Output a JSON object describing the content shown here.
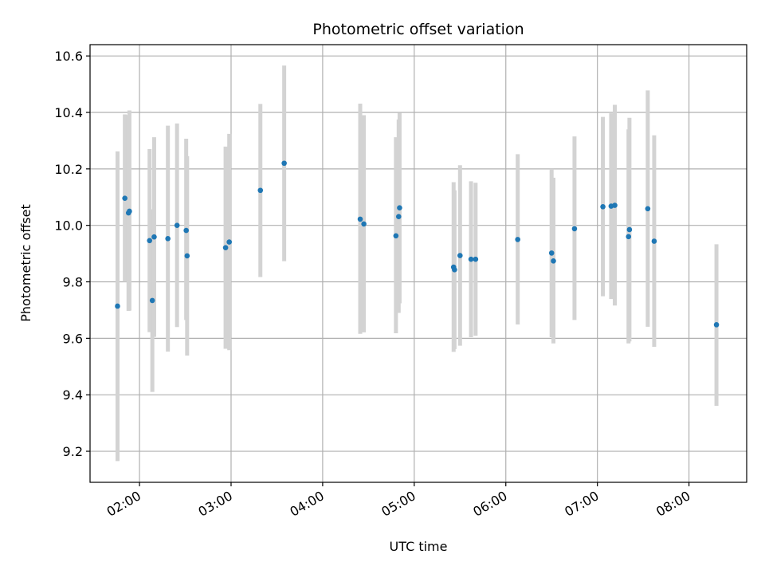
{
  "chart_data": {
    "type": "scatter",
    "title": "Photometric offset variation",
    "xlabel": "UTC time",
    "ylabel": "Photometric offset",
    "x_unit": "hours UTC",
    "xlim": [
      1.46,
      8.63
    ],
    "ylim": [
      9.09,
      10.64
    ],
    "grid": true,
    "xticks": [
      {
        "value": 2,
        "label": "02:00"
      },
      {
        "value": 3,
        "label": "03:00"
      },
      {
        "value": 4,
        "label": "04:00"
      },
      {
        "value": 5,
        "label": "05:00"
      },
      {
        "value": 6,
        "label": "06:00"
      },
      {
        "value": 7,
        "label": "07:00"
      },
      {
        "value": 8,
        "label": "08:00"
      }
    ],
    "yticks": [
      {
        "value": 9.2,
        "label": "9.2"
      },
      {
        "value": 9.4,
        "label": "9.4"
      },
      {
        "value": 9.6,
        "label": "9.6"
      },
      {
        "value": 9.8,
        "label": "9.8"
      },
      {
        "value": 10.0,
        "label": "10.0"
      },
      {
        "value": 10.2,
        "label": "10.2"
      },
      {
        "value": 10.4,
        "label": "10.4"
      },
      {
        "value": 10.6,
        "label": "10.6"
      }
    ],
    "colors": {
      "point": "#1f77b4",
      "errorbar": "#d3d3d3",
      "grid": "#b0b0b0"
    },
    "points": [
      {
        "x": 1.76,
        "y": 9.714,
        "low": 9.165,
        "high": 10.262
      },
      {
        "x": 1.84,
        "y": 10.096,
        "low": 9.8,
        "high": 10.393
      },
      {
        "x": 1.88,
        "y": 10.044,
        "low": 9.697,
        "high": 10.391
      },
      {
        "x": 1.89,
        "y": 10.05,
        "low": 9.698,
        "high": 10.407
      },
      {
        "x": 2.11,
        "y": 9.946,
        "low": 9.622,
        "high": 10.27
      },
      {
        "x": 2.14,
        "y": 9.734,
        "low": 9.41,
        "high": 10.057
      },
      {
        "x": 2.16,
        "y": 9.959,
        "low": 9.605,
        "high": 10.312
      },
      {
        "x": 2.31,
        "y": 9.953,
        "low": 9.553,
        "high": 10.353
      },
      {
        "x": 2.41,
        "y": 10.0,
        "low": 9.64,
        "high": 10.361
      },
      {
        "x": 2.51,
        "y": 9.982,
        "low": 9.665,
        "high": 10.307
      },
      {
        "x": 2.52,
        "y": 9.892,
        "low": 9.539,
        "high": 10.245
      },
      {
        "x": 2.94,
        "y": 9.921,
        "low": 9.563,
        "high": 10.279
      },
      {
        "x": 2.98,
        "y": 9.941,
        "low": 9.558,
        "high": 10.324
      },
      {
        "x": 3.32,
        "y": 10.124,
        "low": 9.817,
        "high": 10.43
      },
      {
        "x": 3.58,
        "y": 10.22,
        "low": 9.873,
        "high": 10.566
      },
      {
        "x": 4.41,
        "y": 10.022,
        "low": 9.616,
        "high": 10.431
      },
      {
        "x": 4.45,
        "y": 10.005,
        "low": 9.621,
        "high": 10.39
      },
      {
        "x": 4.8,
        "y": 9.963,
        "low": 9.618,
        "high": 10.312
      },
      {
        "x": 4.83,
        "y": 10.031,
        "low": 9.69,
        "high": 10.375
      },
      {
        "x": 4.84,
        "y": 10.062,
        "low": 9.724,
        "high": 10.399
      },
      {
        "x": 5.43,
        "y": 9.852,
        "low": 9.552,
        "high": 10.153
      },
      {
        "x": 5.44,
        "y": 9.843,
        "low": 9.562,
        "high": 10.124
      },
      {
        "x": 5.5,
        "y": 9.893,
        "low": 9.574,
        "high": 10.213
      },
      {
        "x": 5.62,
        "y": 9.88,
        "low": 9.604,
        "high": 10.156
      },
      {
        "x": 5.67,
        "y": 9.88,
        "low": 9.609,
        "high": 10.151
      },
      {
        "x": 6.13,
        "y": 9.95,
        "low": 9.649,
        "high": 10.252
      },
      {
        "x": 6.5,
        "y": 9.902,
        "low": 9.604,
        "high": 10.2
      },
      {
        "x": 6.52,
        "y": 9.874,
        "low": 9.582,
        "high": 10.169
      },
      {
        "x": 6.75,
        "y": 9.988,
        "low": 9.665,
        "high": 10.315
      },
      {
        "x": 7.06,
        "y": 10.066,
        "low": 9.749,
        "high": 10.384
      },
      {
        "x": 7.15,
        "y": 10.068,
        "low": 9.739,
        "high": 10.397
      },
      {
        "x": 7.19,
        "y": 10.071,
        "low": 9.716,
        "high": 10.427
      },
      {
        "x": 7.34,
        "y": 9.96,
        "low": 9.582,
        "high": 10.34
      },
      {
        "x": 7.35,
        "y": 9.985,
        "low": 9.589,
        "high": 10.381
      },
      {
        "x": 7.55,
        "y": 10.059,
        "low": 9.641,
        "high": 10.478
      },
      {
        "x": 7.62,
        "y": 9.944,
        "low": 9.57,
        "high": 10.319
      },
      {
        "x": 8.3,
        "y": 9.648,
        "low": 9.361,
        "high": 9.933
      }
    ]
  }
}
